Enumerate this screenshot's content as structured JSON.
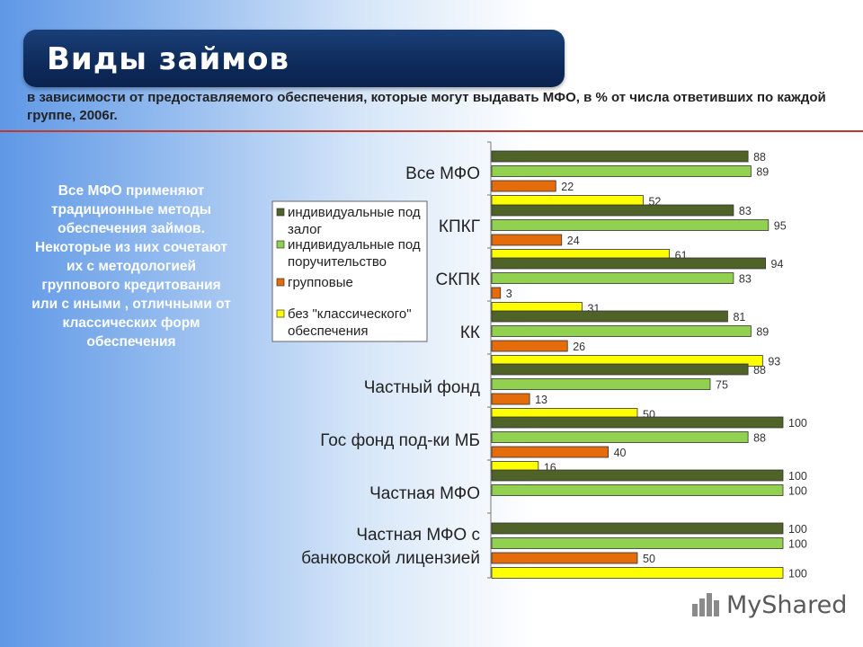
{
  "header": {
    "title": "Виды  займов",
    "subtitle": "в зависимости от предоставляемого обеспечения, которые могут выдавать МФО, в % от числа ответивших по каждой группе, 2006г."
  },
  "side_note": "Все МФО применяют традиционные методы обеспечения займов. Некоторые из них сочетают  их с методологией группового кредитования или с иными , отличными от классических форм обеспечения",
  "logo": {
    "text": "MyShared"
  },
  "colors": {
    "accent_line": "#c0392b",
    "title_bg": "#0e2b5a"
  },
  "chart_data": {
    "type": "bar",
    "orientation": "horizontal",
    "title": "",
    "xlabel": "",
    "ylabel": "",
    "xlim": [
      0,
      100
    ],
    "legend_position": "left",
    "categories": [
      "Все МФО",
      "КПКГ",
      "СКПК",
      "КК",
      "Частный фонд",
      "Гос фонд под-ки МБ",
      "Частная МФО",
      "Частная МФО с банковской лицензией"
    ],
    "series": [
      {
        "name": "индивидуальные под залог",
        "color": "#4f6228",
        "values": [
          88,
          83,
          94,
          81,
          88,
          100,
          100,
          100
        ]
      },
      {
        "name": "индивидуальные под поручительство",
        "color": "#92d050",
        "values": [
          89,
          95,
          83,
          89,
          75,
          88,
          100,
          100
        ]
      },
      {
        "name": "групповые",
        "color": "#e46c0a",
        "values": [
          22,
          24,
          3,
          26,
          13,
          40,
          null,
          50
        ]
      },
      {
        "name": "без \"классического\" обеспечения",
        "color": "#ffff00",
        "values": [
          52,
          61,
          31,
          93,
          50,
          16,
          null,
          100
        ]
      }
    ]
  }
}
